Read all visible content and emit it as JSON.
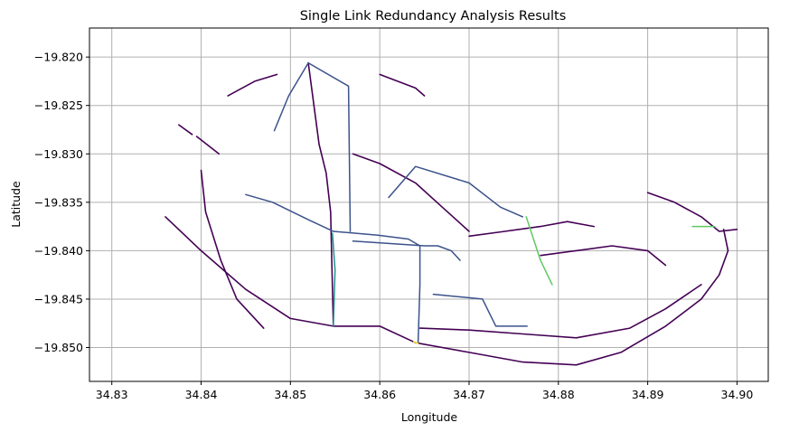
{
  "chart_data": {
    "type": "line",
    "title": "Single Link Redundancy Analysis Results",
    "xlabel": "Longitude",
    "ylabel": "Latitude",
    "xlim": [
      34.8275,
      34.9035
    ],
    "ylim": [
      -19.8535,
      -19.817
    ],
    "xticks": [
      34.83,
      34.84,
      34.85,
      34.86,
      34.87,
      34.88,
      34.89,
      34.9
    ],
    "xtick_labels": [
      "34.83",
      "34.84",
      "34.85",
      "34.86",
      "34.87",
      "34.88",
      "34.89",
      "34.90"
    ],
    "yticks": [
      -19.82,
      -19.825,
      -19.83,
      -19.835,
      -19.84,
      -19.845,
      -19.85
    ],
    "ytick_labels": [
      "−19.820",
      "−19.825",
      "−19.830",
      "−19.835",
      "−19.840",
      "−19.845",
      "−19.850"
    ],
    "grid": true,
    "colormap": "viridis",
    "colors": {
      "low": "#440154",
      "mid_low": "#3b528b",
      "mid": "#21918c",
      "mid_high": "#5ec962",
      "high": "#fde725"
    },
    "series": [
      {
        "color_level": "mid_low",
        "points": [
          [
            34.852,
            -19.8206
          ],
          [
            34.8565,
            -19.823
          ],
          [
            34.8567,
            -19.838
          ]
        ]
      },
      {
        "color_level": "mid_low",
        "points": [
          [
            34.852,
            -19.8206
          ],
          [
            34.8498,
            -19.824
          ],
          [
            34.8482,
            -19.8276
          ]
        ]
      },
      {
        "color_level": "mid_low",
        "points": [
          [
            34.8548,
            -19.838
          ],
          [
            34.8598,
            -19.8384
          ],
          [
            34.8632,
            -19.8388
          ],
          [
            34.8645,
            -19.8395
          ],
          [
            34.8645,
            -19.8435
          ],
          [
            34.8643,
            -19.8495
          ]
        ]
      },
      {
        "color_level": "mid_low",
        "points": [
          [
            34.866,
            -19.8445
          ],
          [
            34.8715,
            -19.845
          ],
          [
            34.873,
            -19.8478
          ],
          [
            34.8765,
            -19.8478
          ]
        ]
      },
      {
        "color_level": "mid_low",
        "points": [
          [
            34.861,
            -19.8345
          ],
          [
            34.864,
            -19.8313
          ],
          [
            34.87,
            -19.833
          ],
          [
            34.8735,
            -19.8355
          ],
          [
            34.876,
            -19.8365
          ]
        ]
      },
      {
        "color_level": "mid_low",
        "points": [
          [
            34.857,
            -19.839
          ],
          [
            34.865,
            -19.8395
          ],
          [
            34.8665,
            -19.8395
          ],
          [
            34.868,
            -19.84
          ],
          [
            34.869,
            -19.841
          ]
        ]
      },
      {
        "color_level": "mid_low",
        "points": [
          [
            34.845,
            -19.8342
          ],
          [
            34.848,
            -19.835
          ],
          [
            34.852,
            -19.8368
          ],
          [
            34.8548,
            -19.838
          ]
        ]
      },
      {
        "color_level": "mid",
        "points": [
          [
            34.8547,
            -19.8382
          ],
          [
            34.855,
            -19.842
          ],
          [
            34.8548,
            -19.8478
          ]
        ]
      },
      {
        "color_level": "mid_high",
        "points": [
          [
            34.8764,
            -19.8365
          ],
          [
            34.878,
            -19.841
          ],
          [
            34.8793,
            -19.8435
          ]
        ]
      },
      {
        "color_level": "mid_high",
        "points": [
          [
            34.895,
            -19.8375
          ],
          [
            34.8975,
            -19.8375
          ]
        ]
      },
      {
        "color_level": "high",
        "points": [
          [
            34.8638,
            -19.8494
          ],
          [
            34.8643,
            -19.8496
          ]
        ]
      },
      {
        "color_level": "low",
        "points": [
          [
            34.836,
            -19.8365
          ],
          [
            34.84,
            -19.84
          ],
          [
            34.845,
            -19.844
          ],
          [
            34.85,
            -19.847
          ],
          [
            34.8548,
            -19.8478
          ],
          [
            34.86,
            -19.8478
          ],
          [
            34.864,
            -19.8495
          ]
        ]
      },
      {
        "color_level": "low",
        "points": [
          [
            34.8548,
            -19.8478
          ],
          [
            34.8545,
            -19.836
          ],
          [
            34.854,
            -19.832
          ],
          [
            34.8532,
            -19.829
          ],
          [
            34.852,
            -19.8206
          ]
        ]
      },
      {
        "color_level": "low",
        "points": [
          [
            34.84,
            -19.8317
          ],
          [
            34.8405,
            -19.836
          ],
          [
            34.8422,
            -19.841
          ],
          [
            34.844,
            -19.845
          ],
          [
            34.847,
            -19.848
          ]
        ]
      },
      {
        "color_level": "low",
        "points": [
          [
            34.864,
            -19.8495
          ],
          [
            34.87,
            -19.8505
          ],
          [
            34.876,
            -19.8515
          ],
          [
            34.882,
            -19.8518
          ],
          [
            34.887,
            -19.8505
          ],
          [
            34.892,
            -19.8478
          ],
          [
            34.896,
            -19.845
          ],
          [
            34.898,
            -19.8425
          ],
          [
            34.899,
            -19.84
          ],
          [
            34.8985,
            -19.8378
          ]
        ]
      },
      {
        "color_level": "low",
        "points": [
          [
            34.8645,
            -19.848
          ],
          [
            34.87,
            -19.8482
          ],
          [
            34.876,
            -19.8486
          ],
          [
            34.882,
            -19.849
          ],
          [
            34.888,
            -19.848
          ],
          [
            34.892,
            -19.846
          ],
          [
            34.896,
            -19.8435
          ]
        ]
      },
      {
        "color_level": "low",
        "points": [
          [
            34.89,
            -19.834
          ],
          [
            34.893,
            -19.835
          ],
          [
            34.896,
            -19.8365
          ],
          [
            34.898,
            -19.838
          ],
          [
            34.9,
            -19.8378
          ]
        ]
      },
      {
        "color_level": "low",
        "points": [
          [
            34.878,
            -19.8405
          ],
          [
            34.882,
            -19.84
          ],
          [
            34.886,
            -19.8395
          ],
          [
            34.89,
            -19.84
          ],
          [
            34.892,
            -19.8415
          ]
        ]
      },
      {
        "color_level": "low",
        "points": [
          [
            34.87,
            -19.8385
          ],
          [
            34.874,
            -19.838
          ],
          [
            34.878,
            -19.8375
          ],
          [
            34.881,
            -19.837
          ],
          [
            34.884,
            -19.8375
          ]
        ]
      },
      {
        "color_level": "low",
        "points": [
          [
            34.857,
            -19.83
          ],
          [
            34.86,
            -19.831
          ],
          [
            34.864,
            -19.833
          ],
          [
            34.867,
            -19.8355
          ],
          [
            34.87,
            -19.838
          ]
        ]
      },
      {
        "color_level": "low",
        "points": [
          [
            34.843,
            -19.824
          ],
          [
            34.846,
            -19.8225
          ],
          [
            34.8485,
            -19.8218
          ]
        ]
      },
      {
        "color_level": "low",
        "points": [
          [
            34.86,
            -19.8218
          ],
          [
            34.862,
            -19.8225
          ],
          [
            34.864,
            -19.8232
          ],
          [
            34.865,
            -19.824
          ]
        ]
      },
      {
        "color_level": "low",
        "points": [
          [
            34.8375,
            -19.827
          ],
          [
            34.839,
            -19.828
          ]
        ]
      },
      {
        "color_level": "low",
        "points": [
          [
            34.8395,
            -19.8282
          ],
          [
            34.842,
            -19.83
          ]
        ]
      }
    ]
  }
}
